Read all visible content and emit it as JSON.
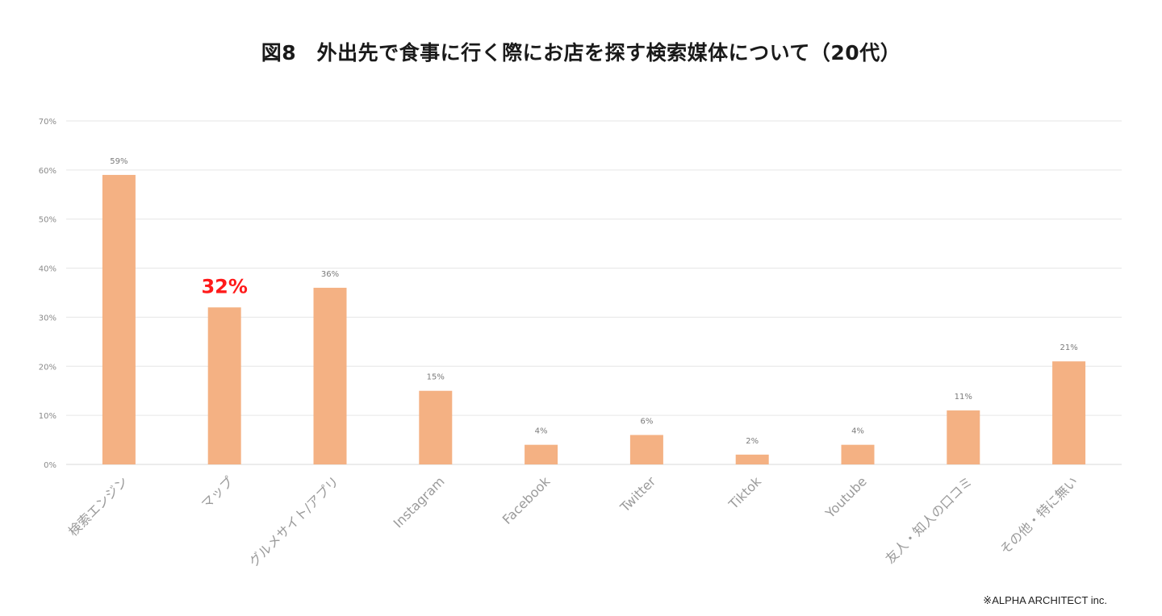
{
  "chart_data": {
    "type": "bar",
    "title": "図8　外出先で食事に行く際にお店を探す検索媒体について（20代）",
    "categories": [
      "検索エンジン",
      "マップ",
      "グルメサイト/アプリ",
      "Instagram",
      "Facebook",
      "Twitter",
      "Tiktok",
      "Youtube",
      "友人・知人の口コミ",
      "その他・特に無い"
    ],
    "values": [
      59,
      32,
      36,
      15,
      4,
      6,
      2,
      4,
      11,
      21
    ],
    "value_labels": [
      "59%",
      "32%",
      "36%",
      "15%",
      "4%",
      "6%",
      "2%",
      "4%",
      "11%",
      "21%"
    ],
    "highlight_index": 1,
    "ylim": [
      0,
      70
    ],
    "yticks": [
      0,
      10,
      20,
      30,
      40,
      50,
      60,
      70
    ],
    "ytick_labels": [
      "0%",
      "10%",
      "20%",
      "30%",
      "40%",
      "50%",
      "60%",
      "70%"
    ],
    "grid": true,
    "legend": "none",
    "xlabel": "",
    "ylabel": "",
    "bar_color": "#f4b183",
    "highlight_label_color": "#ff1a1a",
    "grid_color": "#e6e6e6"
  },
  "credit": "※ALPHA ARCHITECT inc."
}
